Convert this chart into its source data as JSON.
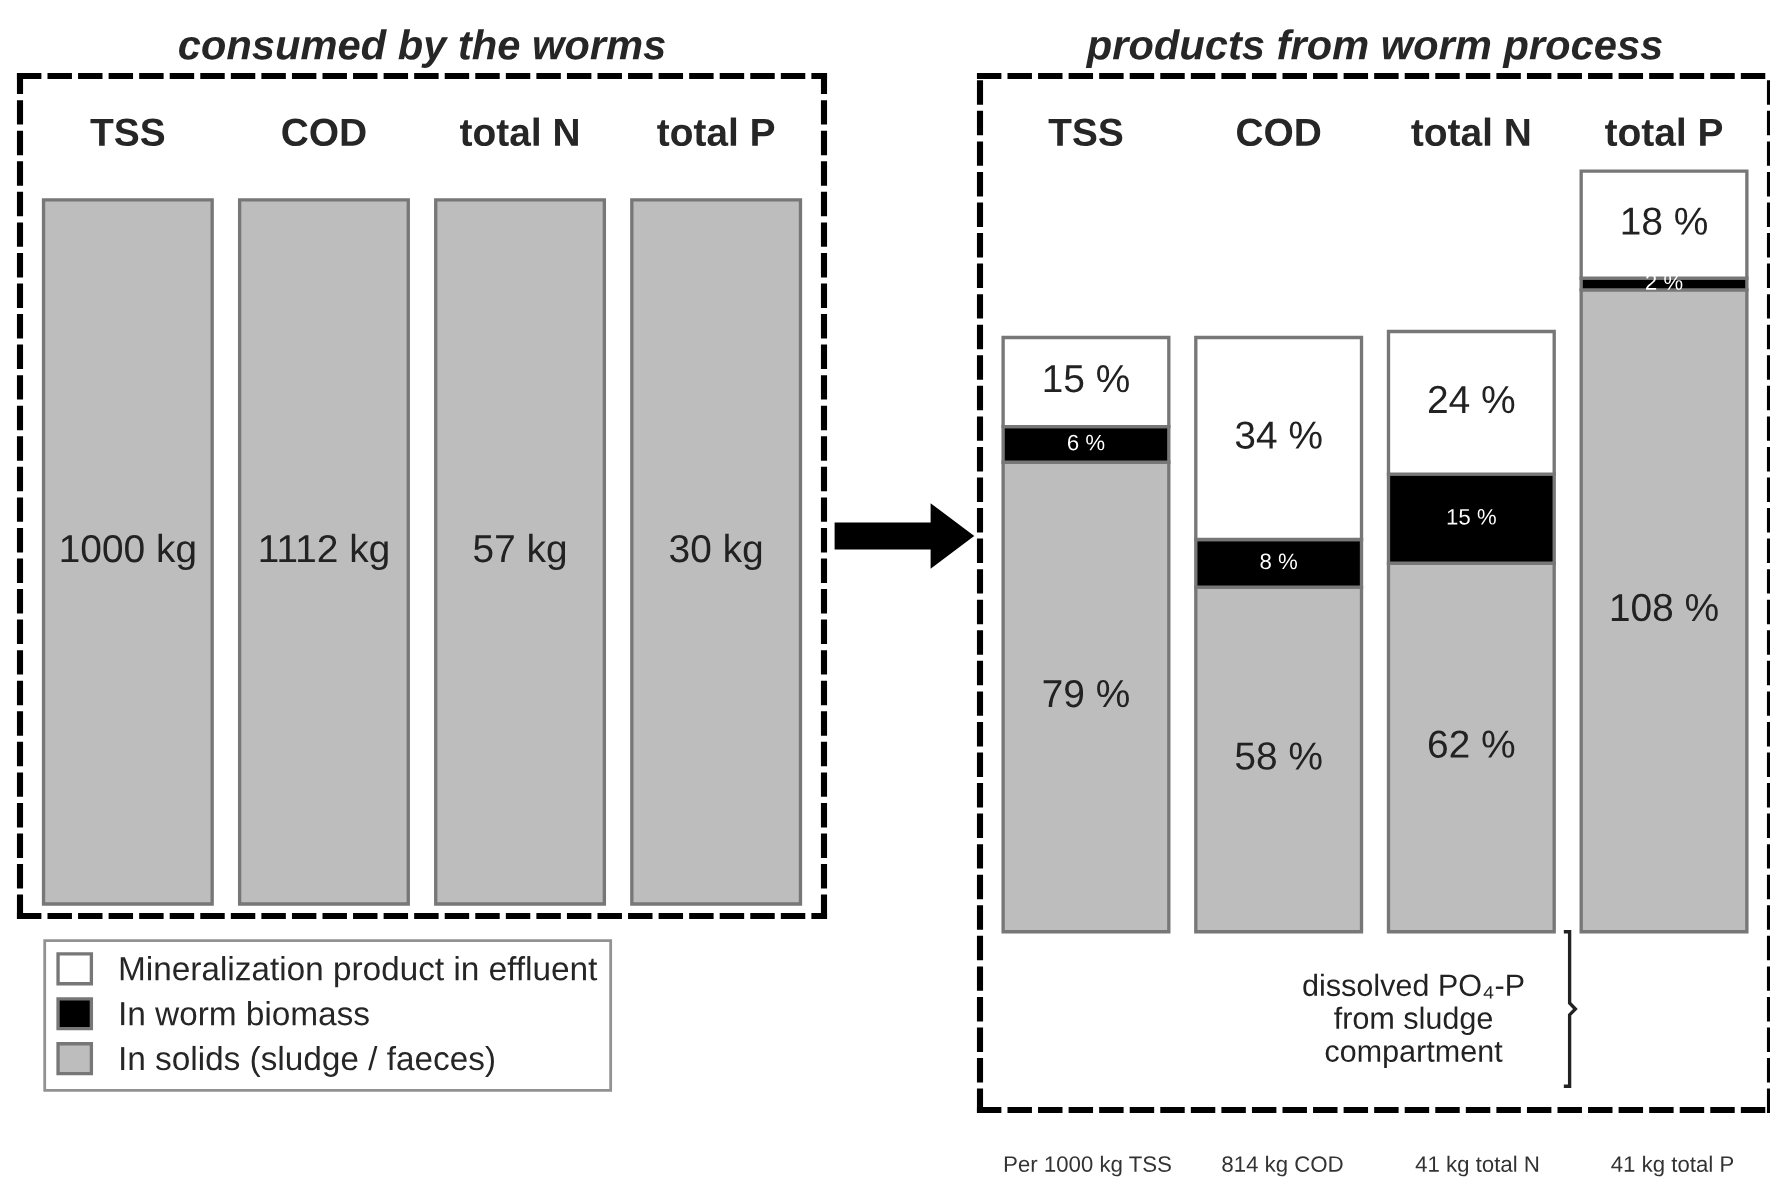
{
  "chart_data": [
    {
      "type": "other",
      "title": "consumed by the worms",
      "categories": [
        "TSS",
        "COD",
        "total N",
        "total P"
      ],
      "series": [
        {
          "color": "#bdbdbd",
          "values": [
            1000,
            1112,
            57,
            30
          ],
          "value_labels": [
            "1000 kg",
            "1112 kg",
            "57 kg",
            "30 kg"
          ]
        }
      ]
    },
    {
      "type": "bar",
      "title": "products from worm process",
      "categories": [
        "TSS",
        "COD",
        "total N",
        "total P"
      ],
      "stacked": true,
      "legend": "bottom left",
      "series": [
        {
          "name": "In solids (sludge / faeces)",
          "color": "#bdbdbd",
          "values": [
            79,
            58,
            62,
            108
          ],
          "value_labels": [
            "79 %",
            "58 %",
            "62 %",
            "108 %"
          ]
        },
        {
          "name": "In worm biomass",
          "color": "#000000",
          "values": [
            6,
            8,
            15,
            2
          ],
          "value_labels": [
            "6 %",
            "8 %",
            "15 %",
            "2 %"
          ]
        },
        {
          "name": "Mineralization product in effluent",
          "color": "#ffffff",
          "values": [
            15,
            34,
            24,
            18
          ],
          "value_labels": [
            "15 %",
            "34 %",
            "24 %",
            "18 %"
          ]
        }
      ],
      "annotations": [
        "dissolved PO₄-P\nfrom sludge\ncompartment",
        "Per 1000 kg TSS",
        "814 kg COD",
        "41 kg total N",
        "41 kg total P"
      ]
    }
  ]
}
